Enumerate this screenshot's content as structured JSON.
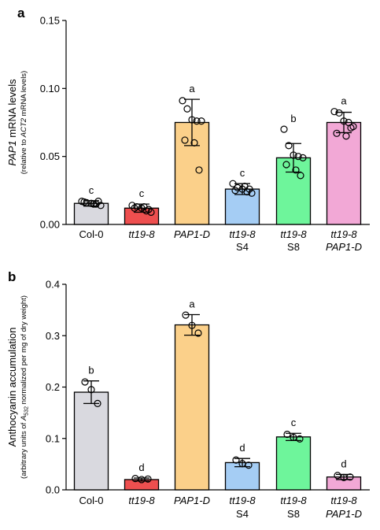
{
  "chart_data": [
    {
      "panel": "a",
      "type": "bar",
      "ylabel": {
        "main_gene": "PAP1",
        "main_rest": " mRNA levels",
        "sub_pre": "(relative to ",
        "sub_gene": "ACT2",
        "sub_post": " mRNA levels)"
      },
      "ylim": [
        0,
        0.15
      ],
      "yticks": [
        "0.00",
        "0.05",
        "0.10",
        "0.15"
      ],
      "ytick_values": [
        0,
        0.05,
        0.1,
        0.15
      ],
      "categories": [
        {
          "line1": "Col-0",
          "line2": "",
          "italic1": false,
          "italic2": false
        },
        {
          "line1": "tt19-8",
          "line2": "",
          "italic1": true,
          "italic2": false
        },
        {
          "line1": "PAP1-D",
          "line2": "",
          "italic1": true,
          "italic2": false
        },
        {
          "line1": "tt19-8",
          "line2": "S4",
          "italic1": true,
          "italic2": false
        },
        {
          "line1": "tt19-8",
          "line2": "S8",
          "italic1": true,
          "italic2": false
        },
        {
          "line1": "tt19-8",
          "line2": "PAP1-D",
          "italic1": true,
          "italic2": true
        }
      ],
      "values": [
        0.0155,
        0.012,
        0.075,
        0.026,
        0.049,
        0.075
      ],
      "errors": [
        0.002,
        0.003,
        0.017,
        0.004,
        0.0105,
        0.0075
      ],
      "letters": [
        "c",
        "c",
        "a",
        "c",
        "b",
        "a"
      ],
      "colors": [
        "#d9d9df",
        "#ee4f4f",
        "#fbd08a",
        "#a5cdf4",
        "#6ef59b",
        "#f2a8d6"
      ],
      "points": [
        [
          0.017,
          0.016,
          0.0155,
          0.015,
          0.014,
          0.0165,
          0.015,
          0.017
        ],
        [
          0.014,
          0.013,
          0.012,
          0.01,
          0.009,
          0.012,
          0.013,
          0.011
        ],
        [
          0.091,
          0.085,
          0.077,
          0.076,
          0.076,
          0.062,
          0.06,
          0.04
        ],
        [
          0.03,
          0.027,
          0.026,
          0.024,
          0.023,
          0.025,
          0.028,
          0.026
        ],
        [
          0.07,
          0.058,
          0.051,
          0.05,
          0.049,
          0.044,
          0.04,
          0.036
        ],
        [
          0.083,
          0.082,
          0.076,
          0.075,
          0.072,
          0.067,
          0.065,
          0.071
        ]
      ]
    },
    {
      "panel": "b",
      "type": "bar",
      "ylabel": {
        "main": "Anthocyanin accumulation",
        "sub_pre": "(arbitrary units of ",
        "sub_sym": "A",
        "sub_idx": "532",
        "sub_post": " normalized per mg of dry weight)"
      },
      "ylim": [
        0,
        0.4
      ],
      "yticks": [
        "0.0",
        "0.1",
        "0.2",
        "0.3",
        "0.4"
      ],
      "ytick_values": [
        0,
        0.1,
        0.2,
        0.3,
        0.4
      ],
      "categories": [
        {
          "line1": "Col-0",
          "line2": "",
          "italic1": false,
          "italic2": false
        },
        {
          "line1": "tt19-8",
          "line2": "",
          "italic1": true,
          "italic2": false
        },
        {
          "line1": "PAP1-D",
          "line2": "",
          "italic1": true,
          "italic2": false
        },
        {
          "line1": "tt19-8",
          "line2": "S4",
          "italic1": true,
          "italic2": false
        },
        {
          "line1": "tt19-8",
          "line2": "S8",
          "italic1": true,
          "italic2": false
        },
        {
          "line1": "tt19-8",
          "line2": "PAP1-D",
          "italic1": true,
          "italic2": true
        }
      ],
      "values": [
        0.19,
        0.02,
        0.321,
        0.053,
        0.103,
        0.025
      ],
      "errors": [
        0.022,
        0.003,
        0.02,
        0.008,
        0.007,
        0.005
      ],
      "letters": [
        "b",
        "d",
        "a",
        "d",
        "c",
        "d"
      ],
      "colors": [
        "#d9d9df",
        "#ee4f4f",
        "#fbd08a",
        "#a5cdf4",
        "#6ef59b",
        "#f2a8d6"
      ],
      "points": [
        [
          0.21,
          0.195,
          0.168
        ],
        [
          0.022,
          0.02,
          0.021
        ],
        [
          0.34,
          0.32,
          0.305
        ],
        [
          0.058,
          0.051,
          0.048
        ],
        [
          0.108,
          0.102,
          0.099
        ],
        [
          0.028,
          0.024,
          0.025
        ]
      ]
    }
  ]
}
